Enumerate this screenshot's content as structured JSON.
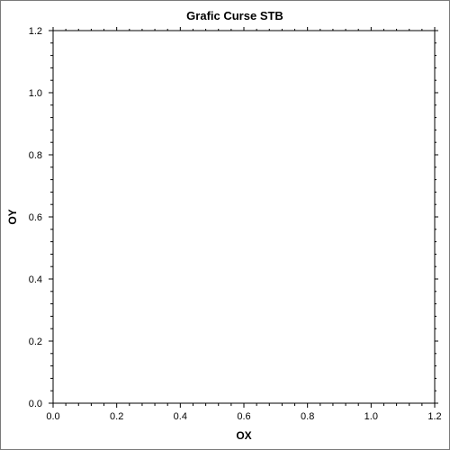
{
  "chart_data": {
    "type": "line",
    "title": "Grafic Curse STB",
    "xlabel": "OX",
    "ylabel": "OY",
    "xlim": [
      0.0,
      1.2
    ],
    "ylim": [
      0.0,
      1.2
    ],
    "xticks": [
      "0.0",
      "0.2",
      "0.4",
      "0.6",
      "0.8",
      "1.0",
      "1.2"
    ],
    "yticks": [
      "0.0",
      "0.2",
      "0.4",
      "0.6",
      "0.8",
      "1.0",
      "1.2"
    ],
    "x_minor_per_major": 4,
    "y_minor_per_major": 4,
    "grid": false,
    "series": []
  },
  "colors": {
    "background": "#ffffff",
    "frame": "#7a7a7a",
    "axes": "#000000"
  }
}
